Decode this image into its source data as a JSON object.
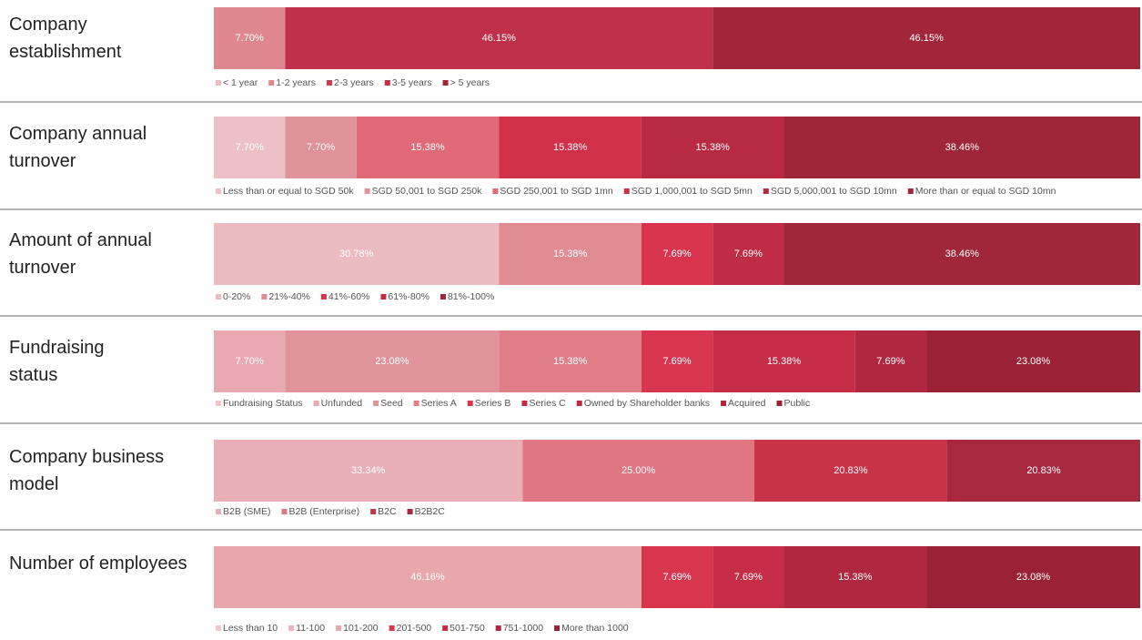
{
  "chart_data": [
    {
      "type": "bar",
      "title": "Company establishment",
      "xlim": [
        0,
        100
      ],
      "series": [
        {
          "name": "< 1 year",
          "color": "#edbcc1",
          "values": [
            0
          ]
        },
        {
          "name": "1-2 years",
          "color": "#e08890",
          "values": [
            7.7
          ],
          "value_labels": [
            "7.70%"
          ]
        },
        {
          "name": "2-3 years",
          "color": "#d23a52",
          "values": [
            0
          ]
        },
        {
          "name": "3-5 years",
          "color": "#c0304a",
          "values": [
            46.15
          ],
          "value_labels": [
            "46.15%"
          ]
        },
        {
          "name": "> 5 years",
          "color": "#a2263a",
          "values": [
            46.15
          ],
          "value_labels": [
            "46.15%"
          ]
        }
      ]
    },
    {
      "type": "bar",
      "title": "Company annual turnover",
      "xlim": [
        0,
        100
      ],
      "series": [
        {
          "name": "Less than or equal to SGD 50k",
          "color": "#ecc0c4",
          "values": [
            7.7
          ],
          "value_labels": [
            "7.70%"
          ]
        },
        {
          "name": "SGD 50,001 to SGD 250k",
          "color": "#e0929a",
          "values": [
            7.7
          ],
          "value_labels": [
            "7.70%"
          ]
        },
        {
          "name": "SGD 250,001 to SGD 1mn",
          "color": "#e06a78",
          "values": [
            15.38
          ],
          "value_labels": [
            "15.38%"
          ]
        },
        {
          "name": "SGD 1,000,001 to SGD 5mn",
          "color": "#d03048",
          "values": [
            15.38
          ],
          "value_labels": [
            "15.38%"
          ]
        },
        {
          "name": "SGD 5,000,001 to SGD 10mn",
          "color": "#b82a42",
          "values": [
            15.38
          ],
          "value_labels": [
            "15.38%"
          ]
        },
        {
          "name": "More than or equal to SGD 10mn",
          "color": "#9f2538",
          "values": [
            38.46
          ],
          "value_labels": [
            "38.46%"
          ]
        }
      ]
    },
    {
      "type": "bar",
      "title": "Amount of annual turnover",
      "xlim": [
        0,
        100
      ],
      "series": [
        {
          "name": "0-20%",
          "color": "#ebbbc0",
          "values": [
            30.78
          ],
          "value_labels": [
            "30.78%"
          ]
        },
        {
          "name": "21%-40%",
          "color": "#e08a92",
          "values": [
            15.38
          ],
          "value_labels": [
            "15.38%"
          ]
        },
        {
          "name": "41%-60%",
          "color": "#d8344d",
          "values": [
            7.69
          ],
          "value_labels": [
            "7.69%"
          ]
        },
        {
          "name": "61%-80%",
          "color": "#c02c45",
          "values": [
            7.69
          ],
          "value_labels": [
            "7.69%"
          ]
        },
        {
          "name": "81%-100%",
          "color": "#a0263a",
          "values": [
            38.46
          ],
          "value_labels": [
            "38.46%"
          ]
        }
      ]
    },
    {
      "type": "bar",
      "title": "Fundraising status",
      "xlim": [
        0,
        100
      ],
      "series": [
        {
          "name": "Fundraising Status",
          "color": "#efc6ca",
          "values": [
            0
          ]
        },
        {
          "name": "Unfunded",
          "color": "#e8a9b0",
          "values": [
            7.7
          ],
          "value_labels": [
            "7.70%"
          ]
        },
        {
          "name": "Seed",
          "color": "#e0939a",
          "values": [
            23.08
          ],
          "value_labels": [
            "23.08%"
          ]
        },
        {
          "name": "Series A",
          "color": "#e07e88",
          "values": [
            15.38
          ],
          "value_labels": [
            "15.38%"
          ]
        },
        {
          "name": "Series B",
          "color": "#d8354f",
          "values": [
            7.69
          ],
          "value_labels": [
            "7.69%"
          ]
        },
        {
          "name": "Series C",
          "color": "#c52d47",
          "values": [
            15.38
          ],
          "value_labels": [
            "15.38%"
          ]
        },
        {
          "name": "Owned by Shareholder banks",
          "color": "#ba2b44",
          "values": [
            0
          ]
        },
        {
          "name": "Acquired",
          "color": "#b02840",
          "values": [
            7.69
          ],
          "value_labels": [
            "7.69%"
          ]
        },
        {
          "name": "Public",
          "color": "#9b2236",
          "values": [
            23.08
          ],
          "value_labels": [
            "23.08%"
          ]
        }
      ]
    },
    {
      "type": "bar",
      "title": "Company business model",
      "xlim": [
        0,
        100
      ],
      "series": [
        {
          "name": "B2B (SME)",
          "color": "#e8b0b6",
          "values": [
            33.34
          ],
          "value_labels": [
            "33.34%"
          ]
        },
        {
          "name": "B2B (Enterprise)",
          "color": "#e07682",
          "values": [
            25.0
          ],
          "value_labels": [
            "25.00%"
          ]
        },
        {
          "name": "B2C",
          "color": "#c83348",
          "values": [
            20.83
          ],
          "value_labels": [
            "20.83%"
          ]
        },
        {
          "name": "B2B2C",
          "color": "#a82840",
          "values": [
            20.83
          ],
          "value_labels": [
            "20.83%"
          ]
        }
      ]
    },
    {
      "type": "bar",
      "title": "Number of employees",
      "xlim": [
        0,
        100
      ],
      "series": [
        {
          "name": "Less than 10",
          "color": "#efc6ca",
          "values": [
            0
          ]
        },
        {
          "name": "11-100",
          "color": "#ebb6bb",
          "values": [
            0
          ]
        },
        {
          "name": "101-200",
          "color": "#e8a6ad",
          "values": [
            46.16
          ],
          "value_labels": [
            "46.16%"
          ]
        },
        {
          "name": "201-500",
          "color": "#d8354f",
          "values": [
            7.69
          ],
          "value_labels": [
            "7.69%"
          ]
        },
        {
          "name": "501-750",
          "color": "#c52d47",
          "values": [
            7.69
          ],
          "value_labels": [
            "7.69%"
          ]
        },
        {
          "name": "751-1000",
          "color": "#b02840",
          "values": [
            15.38
          ],
          "value_labels": [
            "15.38%"
          ]
        },
        {
          "name": "More than 1000",
          "color": "#9b2236",
          "values": [
            23.08
          ],
          "value_labels": [
            "23.08%"
          ]
        }
      ]
    }
  ]
}
